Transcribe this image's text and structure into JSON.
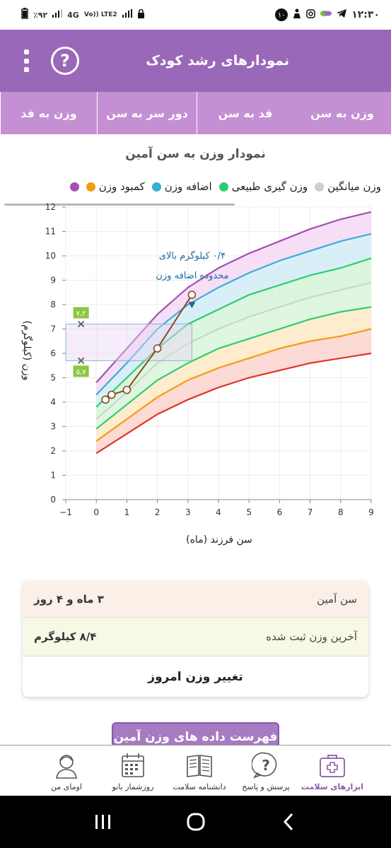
{
  "status_bar": {
    "time": "۱۲:۳۰",
    "battery": "٪۹۲",
    "network": "4G",
    "volte": "Vo)) LTE2",
    "notif_count": "۱۰"
  },
  "app_bar": {
    "title": "نمودارهای رشد کودک"
  },
  "tabs": [
    {
      "label": "وزن به سن",
      "active": true
    },
    {
      "label": "قد به سن",
      "active": false
    },
    {
      "label": "دور سر به سن",
      "active": false
    },
    {
      "label": "وزن به قد",
      "active": false
    }
  ],
  "chart": {
    "title": "نمودار وزن به سن آمین",
    "legend": [
      {
        "label": "کمبود وزن",
        "color": "#f39c12"
      },
      {
        "label": "اضافه وزن",
        "color": "#3aaed8"
      },
      {
        "label": "وزن گیری طبیعی",
        "color": "#2ecc71"
      },
      {
        "label": "وزن میانگین",
        "color": "#cfcfcf"
      }
    ],
    "annotation_line1": "۰/۴ کیلوگرم بالای",
    "annotation_line2": "محدوده اضافه وزن",
    "range_high": "۷,۲",
    "range_low": "۵,۷",
    "ylabel": "وزن (کیلوگرم)",
    "xlabel": "سن فرزند (ماه)"
  },
  "chart_data": {
    "type": "line",
    "xlim": [
      -1,
      9
    ],
    "ylim": [
      0,
      12
    ],
    "x_ticks": [
      -1,
      0,
      1,
      2,
      3,
      4,
      5,
      6,
      7,
      8,
      9
    ],
    "y_ticks": [
      0,
      1,
      2,
      3,
      4,
      5,
      6,
      7,
      8,
      9,
      10,
      11,
      12
    ],
    "x_tick_labels": [
      "−1",
      "0",
      "1",
      "2",
      "3",
      "4",
      "5",
      "6",
      "7",
      "8",
      "9"
    ],
    "y_tick_labels": [
      "0",
      "1",
      "2",
      "3",
      "4",
      "5",
      "6",
      "7",
      "8",
      "9",
      "10",
      "11",
      "12"
    ],
    "curve_x": [
      0,
      1,
      2,
      3,
      4,
      5,
      6,
      7,
      8,
      9
    ],
    "percentile_curves": [
      {
        "color": "#e0342a",
        "values": [
          1.9,
          2.7,
          3.5,
          4.1,
          4.6,
          5.0,
          5.3,
          5.6,
          5.8,
          6.0
        ]
      },
      {
        "color": "#f39c12",
        "values": [
          2.4,
          3.3,
          4.2,
          4.9,
          5.4,
          5.8,
          6.2,
          6.5,
          6.7,
          7.0
        ]
      },
      {
        "color": "#2ecc71",
        "values": [
          2.9,
          3.9,
          4.9,
          5.6,
          6.2,
          6.6,
          7.0,
          7.4,
          7.7,
          7.9
        ]
      },
      {
        "color": "#c8d8c8",
        "values": [
          3.3,
          4.4,
          5.6,
          6.4,
          7.0,
          7.5,
          7.9,
          8.3,
          8.6,
          8.9
        ]
      },
      {
        "color": "#2ecc71",
        "values": [
          3.8,
          5.0,
          6.2,
          7.2,
          7.8,
          8.4,
          8.8,
          9.2,
          9.5,
          9.9
        ]
      },
      {
        "color": "#3aaed8",
        "values": [
          4.3,
          5.6,
          7.0,
          8.0,
          8.7,
          9.3,
          9.8,
          10.2,
          10.6,
          10.9
        ]
      },
      {
        "color": "#a351b0",
        "values": [
          4.8,
          6.2,
          7.6,
          8.7,
          9.5,
          10.1,
          10.6,
          11.1,
          11.5,
          11.8
        ]
      }
    ],
    "child_series": {
      "color": "#8b4a1f",
      "x": [
        0.3,
        0.5,
        1.0,
        2.0,
        3.13
      ],
      "y": [
        4.1,
        4.3,
        4.5,
        6.2,
        8.4
      ]
    },
    "range_box": {
      "x0": -1,
      "x1": 3.13,
      "y0": 5.7,
      "y1": 7.2
    }
  },
  "info_card": {
    "age_label": "سن آمین",
    "age_value": "۳ ماه و ۴ روز",
    "weight_label": "آخرین وزن ثبت شده",
    "weight_value": "۸/۴ کیلوگرم",
    "change_button": "تغییر وزن امروز"
  },
  "data_list_button": "فهرست داده های وزن آمین",
  "bottom_nav": [
    {
      "label": "ابزارهای سلامت",
      "icon": "health-kit-icon",
      "active": true
    },
    {
      "label": "پرسش و پاسخ",
      "icon": "question-icon",
      "active": false
    },
    {
      "label": "دانشنامه سلامت",
      "icon": "book-icon",
      "active": false
    },
    {
      "label": "روزشمار بانو",
      "icon": "calendar-icon",
      "active": false
    },
    {
      "label": "اومای من",
      "icon": "avatar-icon",
      "active": false
    }
  ]
}
